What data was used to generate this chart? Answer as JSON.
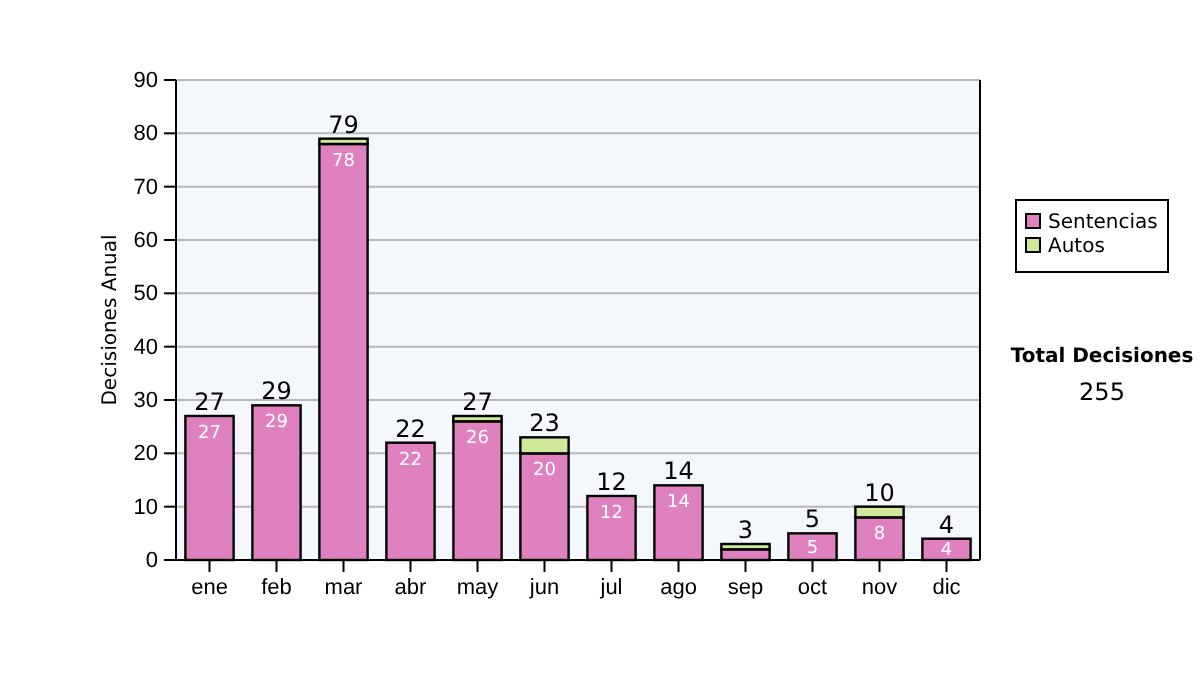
{
  "chart_data": {
    "type": "bar",
    "stacked": true,
    "ylabel": "Decisiones Anual",
    "categories": [
      "ene",
      "feb",
      "mar",
      "abr",
      "may",
      "jun",
      "jul",
      "ago",
      "sep",
      "oct",
      "nov",
      "dic"
    ],
    "series": [
      {
        "name": "Sentencias",
        "color": "#df80bf",
        "values": [
          27,
          29,
          78,
          22,
          26,
          20,
          12,
          14,
          2,
          5,
          8,
          4
        ],
        "value_labels": [
          "27",
          "29",
          "78",
          "22",
          "26",
          "20",
          "12",
          "14",
          null,
          "5",
          "8",
          "4"
        ]
      },
      {
        "name": "Autos",
        "color": "#cfe89a",
        "values": [
          0,
          0,
          1,
          0,
          1,
          3,
          0,
          0,
          1,
          0,
          2,
          0
        ]
      }
    ],
    "totals": [
      "27",
      "29",
      "79",
      "22",
      "27",
      "23",
      "12",
      "14",
      "3",
      "5",
      "10",
      "4"
    ],
    "ylim": [
      0,
      90
    ],
    "yticks": [
      0,
      10,
      20,
      30,
      40,
      50,
      60,
      70,
      80,
      90
    ],
    "grid": "y",
    "legend": "right",
    "annotations": [
      "Total Decisiones",
      "255"
    ]
  }
}
